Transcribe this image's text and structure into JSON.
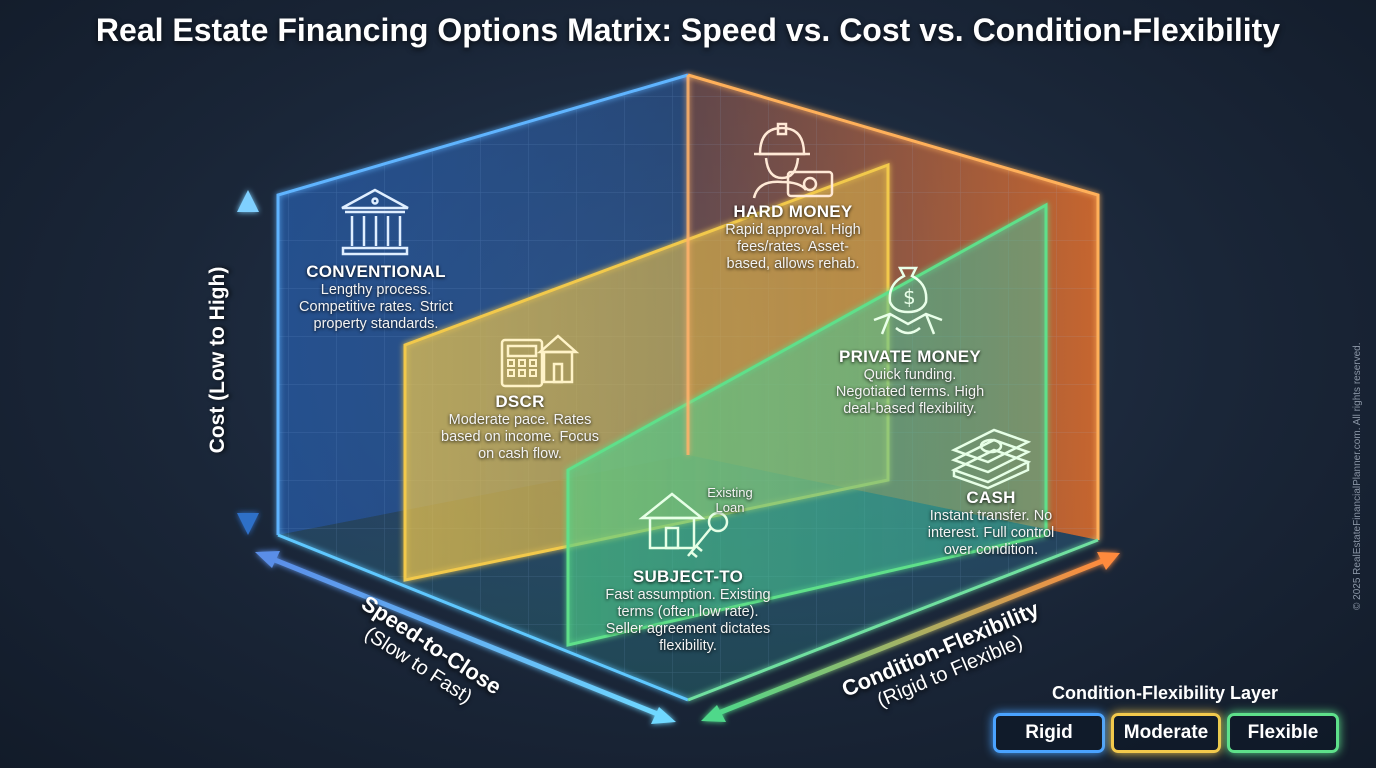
{
  "title": "Real Estate Financing Options Matrix: Speed vs. Cost vs. Condition-Flexibility",
  "axes": {
    "cost": {
      "label": "Cost (Low to High)"
    },
    "speed": {
      "label": "Speed-to-Close",
      "sub": "(Slow to Fast)"
    },
    "flex": {
      "label": "Condition-Flexibility",
      "sub": "(Rigid to Flexible)"
    }
  },
  "options": {
    "conventional": {
      "name": "CONVENTIONAL",
      "desc": [
        "Lengthy process.",
        "Competitive rates. Strict",
        "property standards."
      ],
      "icon": "bank-icon"
    },
    "hard_money": {
      "name": "HARD MONEY",
      "desc": [
        "Rapid approval. High",
        "fees/rates. Asset-",
        "based, allows rehab."
      ],
      "icon": "worker-money-icon"
    },
    "private_money": {
      "name": "PRIVATE MONEY",
      "desc": [
        "Quick funding.",
        "Negotiated terms. High",
        "deal-based flexibility."
      ],
      "icon": "handshake-money-bag-icon"
    },
    "dscr": {
      "name": "DSCR",
      "desc": [
        "Moderate pace. Rates",
        "based on income. Focus",
        "on cash flow."
      ],
      "icon": "calculator-house-icon"
    },
    "cash": {
      "name": "CASH",
      "desc": [
        "Instant transfer. No",
        "interest. Full control",
        "over condition."
      ],
      "icon": "cash-stack-icon"
    },
    "subject_to": {
      "name": "SUBJECT-TO",
      "desc": [
        "Fast assumption. Existing",
        "terms (often low rate).",
        "Seller agreement dictates",
        "flexibility."
      ],
      "icon": "house-key-icon",
      "icon_label": [
        "Existing",
        "Loan"
      ]
    }
  },
  "legend": {
    "title": "Condition-Flexibility Layer",
    "items": [
      {
        "label": "Rigid",
        "color": "#4aa3ff"
      },
      {
        "label": "Moderate",
        "color": "#f2c94c"
      },
      {
        "label": "Flexible",
        "color": "#5ee08a"
      }
    ]
  },
  "copyright": "© 2025 RealEstateFinancialPlanner.com. All rights reserved.",
  "colors": {
    "blue": "#4aa3ff",
    "yellow": "#f2c94c",
    "green": "#5ee08a",
    "orange": "#ff8a3d"
  }
}
